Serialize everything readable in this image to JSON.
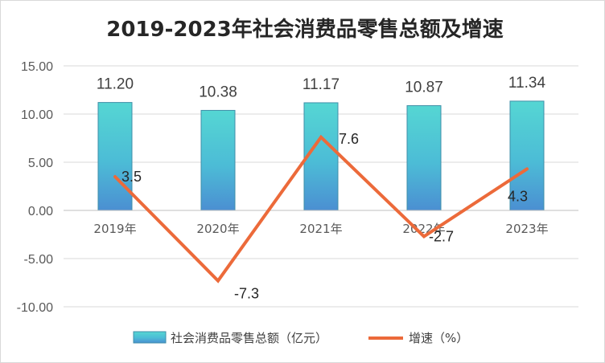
{
  "chart_data": {
    "type": "bar+line",
    "title": "2019-2023年社会消费品零售总额及增速",
    "categories": [
      "2019年",
      "2020年",
      "2021年",
      "2022年",
      "2023年"
    ],
    "series": [
      {
        "name": "社会消费品零售总额（亿元）",
        "type": "bar",
        "values": [
          11.2,
          10.38,
          11.17,
          10.87,
          11.34
        ],
        "labels": [
          "11.20",
          "10.38",
          "11.17",
          "10.87",
          "11.34"
        ],
        "color": "#4fc9d0"
      },
      {
        "name": "增速（%）",
        "type": "line",
        "values": [
          3.5,
          -7.3,
          7.6,
          -2.7,
          4.3
        ],
        "labels": [
          "3.5",
          "-7.3",
          "7.6",
          "-2.7",
          "4.3"
        ],
        "color": "#ec6a3a"
      }
    ],
    "y_ticks": [
      "15.00",
      "10.00",
      "5.00",
      "0.00",
      "-5.00",
      "-10.00"
    ],
    "ylim": [
      -10,
      15
    ],
    "xlabel": "",
    "ylabel": "",
    "grid": true,
    "legend_position": "bottom"
  }
}
